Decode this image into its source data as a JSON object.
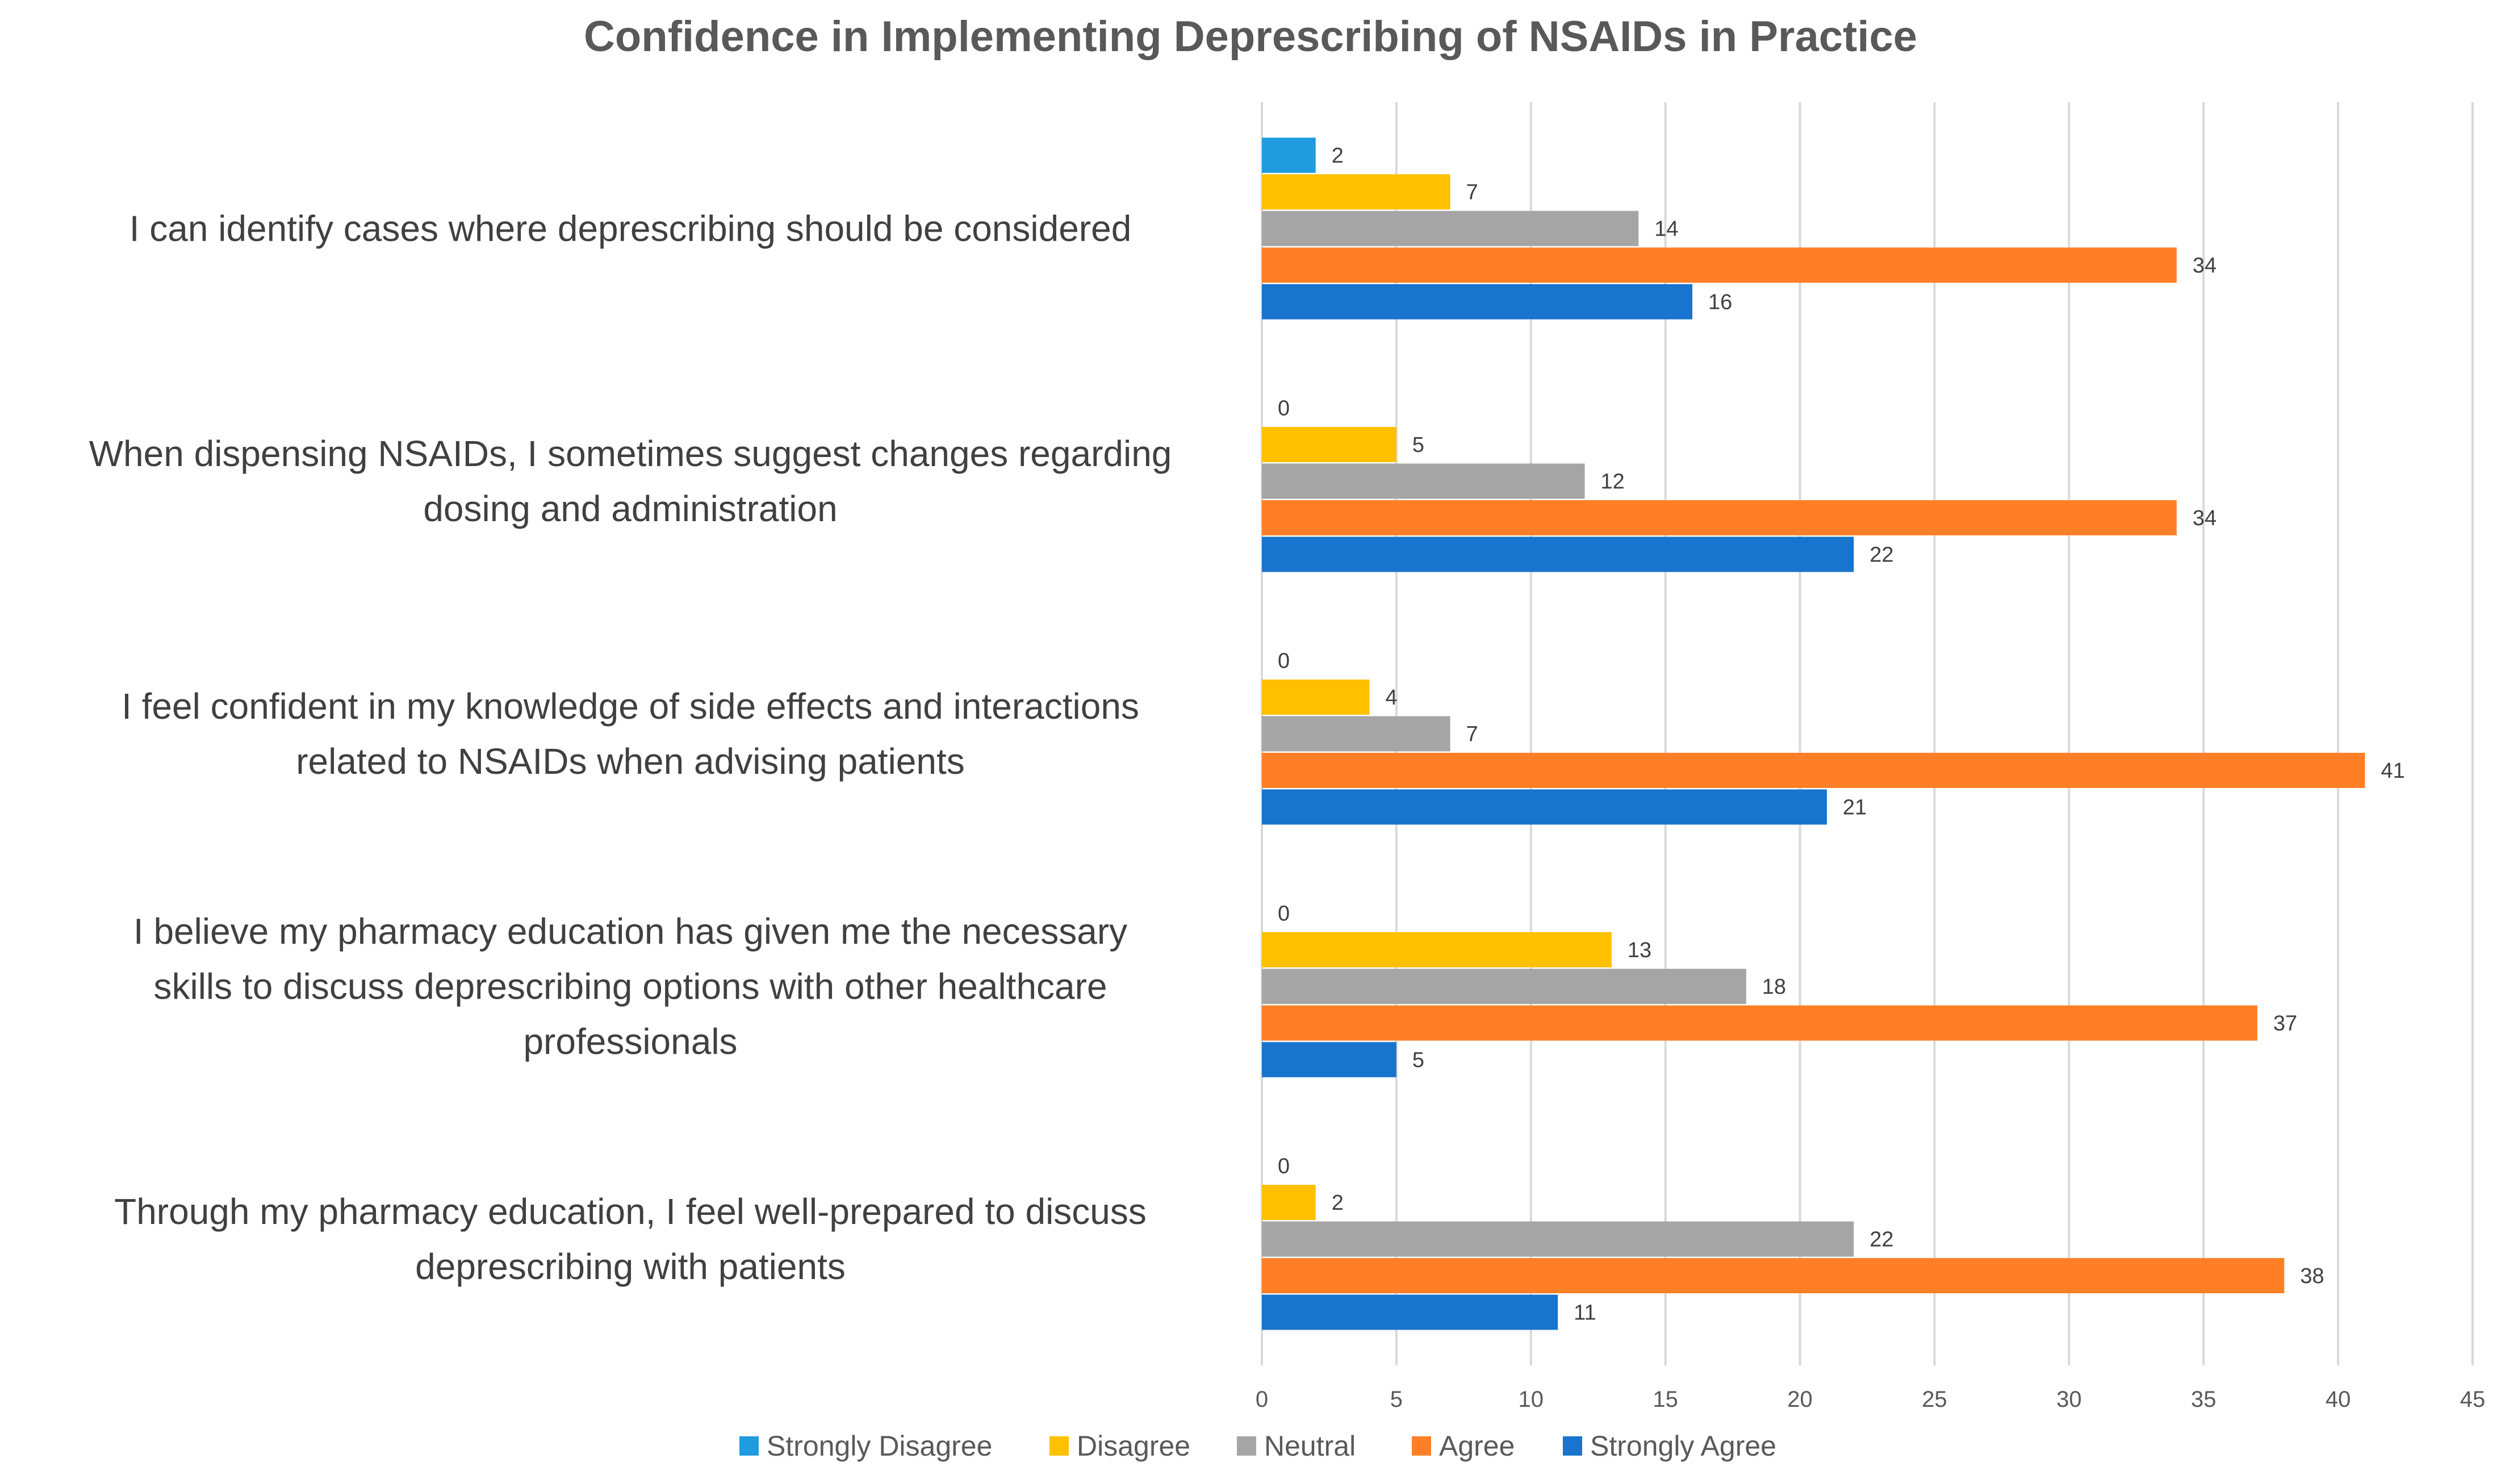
{
  "chart_data": {
    "type": "bar",
    "orientation": "horizontal",
    "title": "Confidence in Implementing Deprescribing of NSAIDs in Practice",
    "categories": [
      [
        "I can identify cases where deprescribing should be considered"
      ],
      [
        "When dispensing NSAIDs, I sometimes suggest changes regarding",
        "dosing and administration"
      ],
      [
        "I feel confident in my knowledge of side effects and interactions",
        "related to NSAIDs when advising patients"
      ],
      [
        "I believe my pharmacy education has given me the necessary",
        "skills to discuss deprescribing options with other healthcare",
        "professionals"
      ],
      [
        "Through my pharmacy education, I feel well-prepared to discuss",
        "deprescribing with patients"
      ]
    ],
    "series": [
      {
        "name": "Strongly Disagree",
        "color": "#1f9bde",
        "values": [
          2,
          0,
          0,
          0,
          0
        ]
      },
      {
        "name": "Disagree",
        "color": "#ffc000",
        "values": [
          7,
          5,
          4,
          13,
          2
        ]
      },
      {
        "name": "Neutral",
        "color": "#a5a5a5",
        "values": [
          14,
          12,
          7,
          18,
          22
        ]
      },
      {
        "name": "Agree",
        "color": "#ff7f27",
        "values": [
          34,
          34,
          41,
          37,
          38
        ]
      },
      {
        "name": "Strongly Agree",
        "color": "#1874cd",
        "values": [
          16,
          22,
          21,
          5,
          11
        ]
      }
    ],
    "xlim": [
      0,
      45
    ],
    "xticks": [
      0,
      5,
      10,
      15,
      20,
      25,
      30,
      35,
      40,
      45
    ],
    "grid": "vertical",
    "legend_position": "bottom"
  }
}
